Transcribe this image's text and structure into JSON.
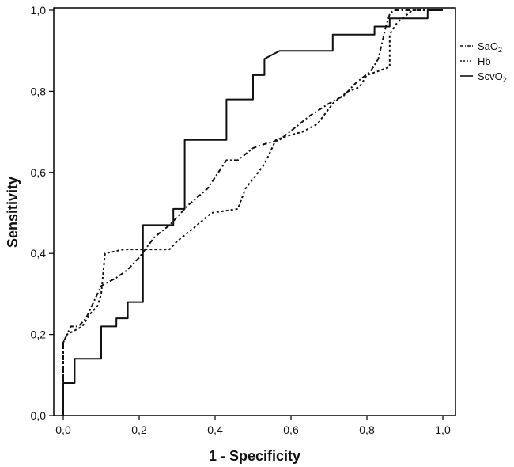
{
  "chart_data": {
    "type": "line",
    "xlabel": "1 - Specificity",
    "ylabel": "Sensitivity",
    "xlim": [
      0,
      1
    ],
    "ylim": [
      0,
      1
    ],
    "xticks": [
      "0,0",
      "0,2",
      "0,4",
      "0,6",
      "0,8",
      "1,0"
    ],
    "yticks": [
      "0,0",
      "0,2",
      "0,4",
      "0,6",
      "0,8",
      "1,0"
    ],
    "legend_position": "right",
    "series": [
      {
        "name": "SaO2",
        "name_main": "SaO",
        "name_sub": "2",
        "style": "dashdot",
        "points": [
          [
            0,
            0
          ],
          [
            0,
            0.18
          ],
          [
            0.01,
            0.2
          ],
          [
            0.02,
            0.22
          ],
          [
            0.04,
            0.22
          ],
          [
            0.06,
            0.24
          ],
          [
            0.08,
            0.28
          ],
          [
            0.1,
            0.32
          ],
          [
            0.14,
            0.34
          ],
          [
            0.17,
            0.36
          ],
          [
            0.2,
            0.39
          ],
          [
            0.24,
            0.44
          ],
          [
            0.28,
            0.47
          ],
          [
            0.33,
            0.52
          ],
          [
            0.38,
            0.56
          ],
          [
            0.43,
            0.63
          ],
          [
            0.46,
            0.63
          ],
          [
            0.5,
            0.66
          ],
          [
            0.53,
            0.67
          ],
          [
            0.57,
            0.68
          ],
          [
            0.61,
            0.71
          ],
          [
            0.65,
            0.74
          ],
          [
            0.7,
            0.77
          ],
          [
            0.74,
            0.79
          ],
          [
            0.77,
            0.82
          ],
          [
            0.81,
            0.85
          ],
          [
            0.83,
            0.88
          ],
          [
            0.84,
            0.92
          ],
          [
            0.85,
            0.96
          ],
          [
            0.86,
            0.99
          ],
          [
            0.87,
            1.0
          ],
          [
            1.0,
            1.0
          ]
        ]
      },
      {
        "name": "Hb",
        "style": "dotted",
        "points": [
          [
            0,
            0
          ],
          [
            0,
            0.18
          ],
          [
            0.01,
            0.2
          ],
          [
            0.03,
            0.21
          ],
          [
            0.05,
            0.22
          ],
          [
            0.07,
            0.25
          ],
          [
            0.09,
            0.27
          ],
          [
            0.1,
            0.3
          ],
          [
            0.11,
            0.4
          ],
          [
            0.16,
            0.41
          ],
          [
            0.23,
            0.41
          ],
          [
            0.28,
            0.41
          ],
          [
            0.3,
            0.43
          ],
          [
            0.34,
            0.46
          ],
          [
            0.39,
            0.5
          ],
          [
            0.46,
            0.51
          ],
          [
            0.48,
            0.56
          ],
          [
            0.53,
            0.62
          ],
          [
            0.56,
            0.68
          ],
          [
            0.59,
            0.69
          ],
          [
            0.63,
            0.7
          ],
          [
            0.67,
            0.72
          ],
          [
            0.71,
            0.77
          ],
          [
            0.75,
            0.8
          ],
          [
            0.78,
            0.81
          ],
          [
            0.8,
            0.84
          ],
          [
            0.86,
            0.86
          ],
          [
            0.86,
            0.94
          ],
          [
            0.88,
            0.97
          ],
          [
            0.92,
            1.0
          ],
          [
            1.0,
            1.0
          ]
        ]
      },
      {
        "name": "ScvO2",
        "name_main": "ScvO",
        "name_sub": "2",
        "style": "solid",
        "points": [
          [
            0,
            0
          ],
          [
            0,
            0.08
          ],
          [
            0.03,
            0.08
          ],
          [
            0.03,
            0.14
          ],
          [
            0.1,
            0.14
          ],
          [
            0.1,
            0.22
          ],
          [
            0.14,
            0.22
          ],
          [
            0.14,
            0.24
          ],
          [
            0.17,
            0.24
          ],
          [
            0.17,
            0.28
          ],
          [
            0.21,
            0.28
          ],
          [
            0.21,
            0.47
          ],
          [
            0.29,
            0.47
          ],
          [
            0.29,
            0.51
          ],
          [
            0.32,
            0.51
          ],
          [
            0.32,
            0.68
          ],
          [
            0.43,
            0.68
          ],
          [
            0.43,
            0.78
          ],
          [
            0.5,
            0.78
          ],
          [
            0.5,
            0.84
          ],
          [
            0.53,
            0.84
          ],
          [
            0.53,
            0.88
          ],
          [
            0.57,
            0.9
          ],
          [
            0.71,
            0.9
          ],
          [
            0.71,
            0.94
          ],
          [
            0.82,
            0.94
          ],
          [
            0.82,
            0.96
          ],
          [
            0.86,
            0.96
          ],
          [
            0.86,
            0.98
          ],
          [
            0.96,
            0.98
          ],
          [
            0.96,
            1.0
          ],
          [
            1.0,
            1.0
          ]
        ]
      }
    ]
  }
}
